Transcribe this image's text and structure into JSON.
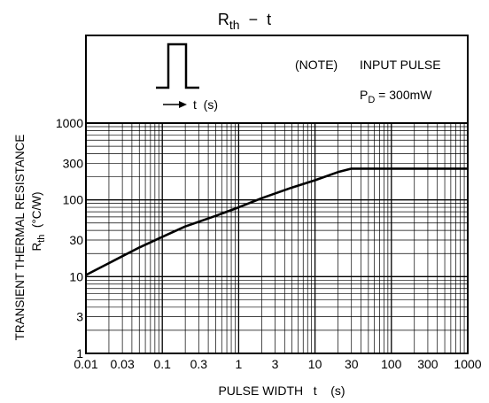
{
  "chart_data": {
    "type": "line",
    "title": "R",
    "title_sub": "th",
    "title_tail": "  −  t",
    "xlabel": "PULSE WIDTH   t    (s)",
    "ylabel_line1": "TRANSIENT THERMAL RESISTANCE",
    "ylabel_line2_main": "R",
    "ylabel_line2_sub": "th",
    "ylabel_line2_tail": "  (°C/W)",
    "x_scale": "log",
    "y_scale": "log",
    "xlim": [
      0.01,
      1000
    ],
    "ylim": [
      1,
      1000
    ],
    "x_ticks": [
      "0.01",
      "0.03",
      "0.1",
      "0.3",
      "1",
      "3",
      "10",
      "30",
      "100",
      "300",
      "1000"
    ],
    "x_tick_values": [
      0.01,
      0.03,
      0.1,
      0.3,
      1,
      3,
      10,
      30,
      100,
      300,
      1000
    ],
    "y_ticks": [
      "1",
      "3",
      "10",
      "30",
      "100",
      "300",
      "1000"
    ],
    "y_tick_values": [
      1,
      3,
      10,
      30,
      100,
      300,
      1000
    ],
    "grid": true,
    "grid_color": "#000000",
    "series": [
      {
        "x": [
          0.01,
          0.02,
          0.05,
          0.1,
          0.2,
          0.5,
          1,
          2,
          5,
          10,
          20,
          30,
          100,
          300,
          1000
        ],
        "y": [
          10.5,
          15,
          24,
          33,
          45,
          62,
          80,
          105,
          145,
          180,
          230,
          255,
          255,
          255,
          255
        ]
      }
    ],
    "note_label": "(NOTE)",
    "note_text": "INPUT PULSE",
    "pd_main": "P",
    "pd_sub": "D",
    "pd_tail": " = 300mW",
    "pulse_axis_label": "t  (s)"
  }
}
